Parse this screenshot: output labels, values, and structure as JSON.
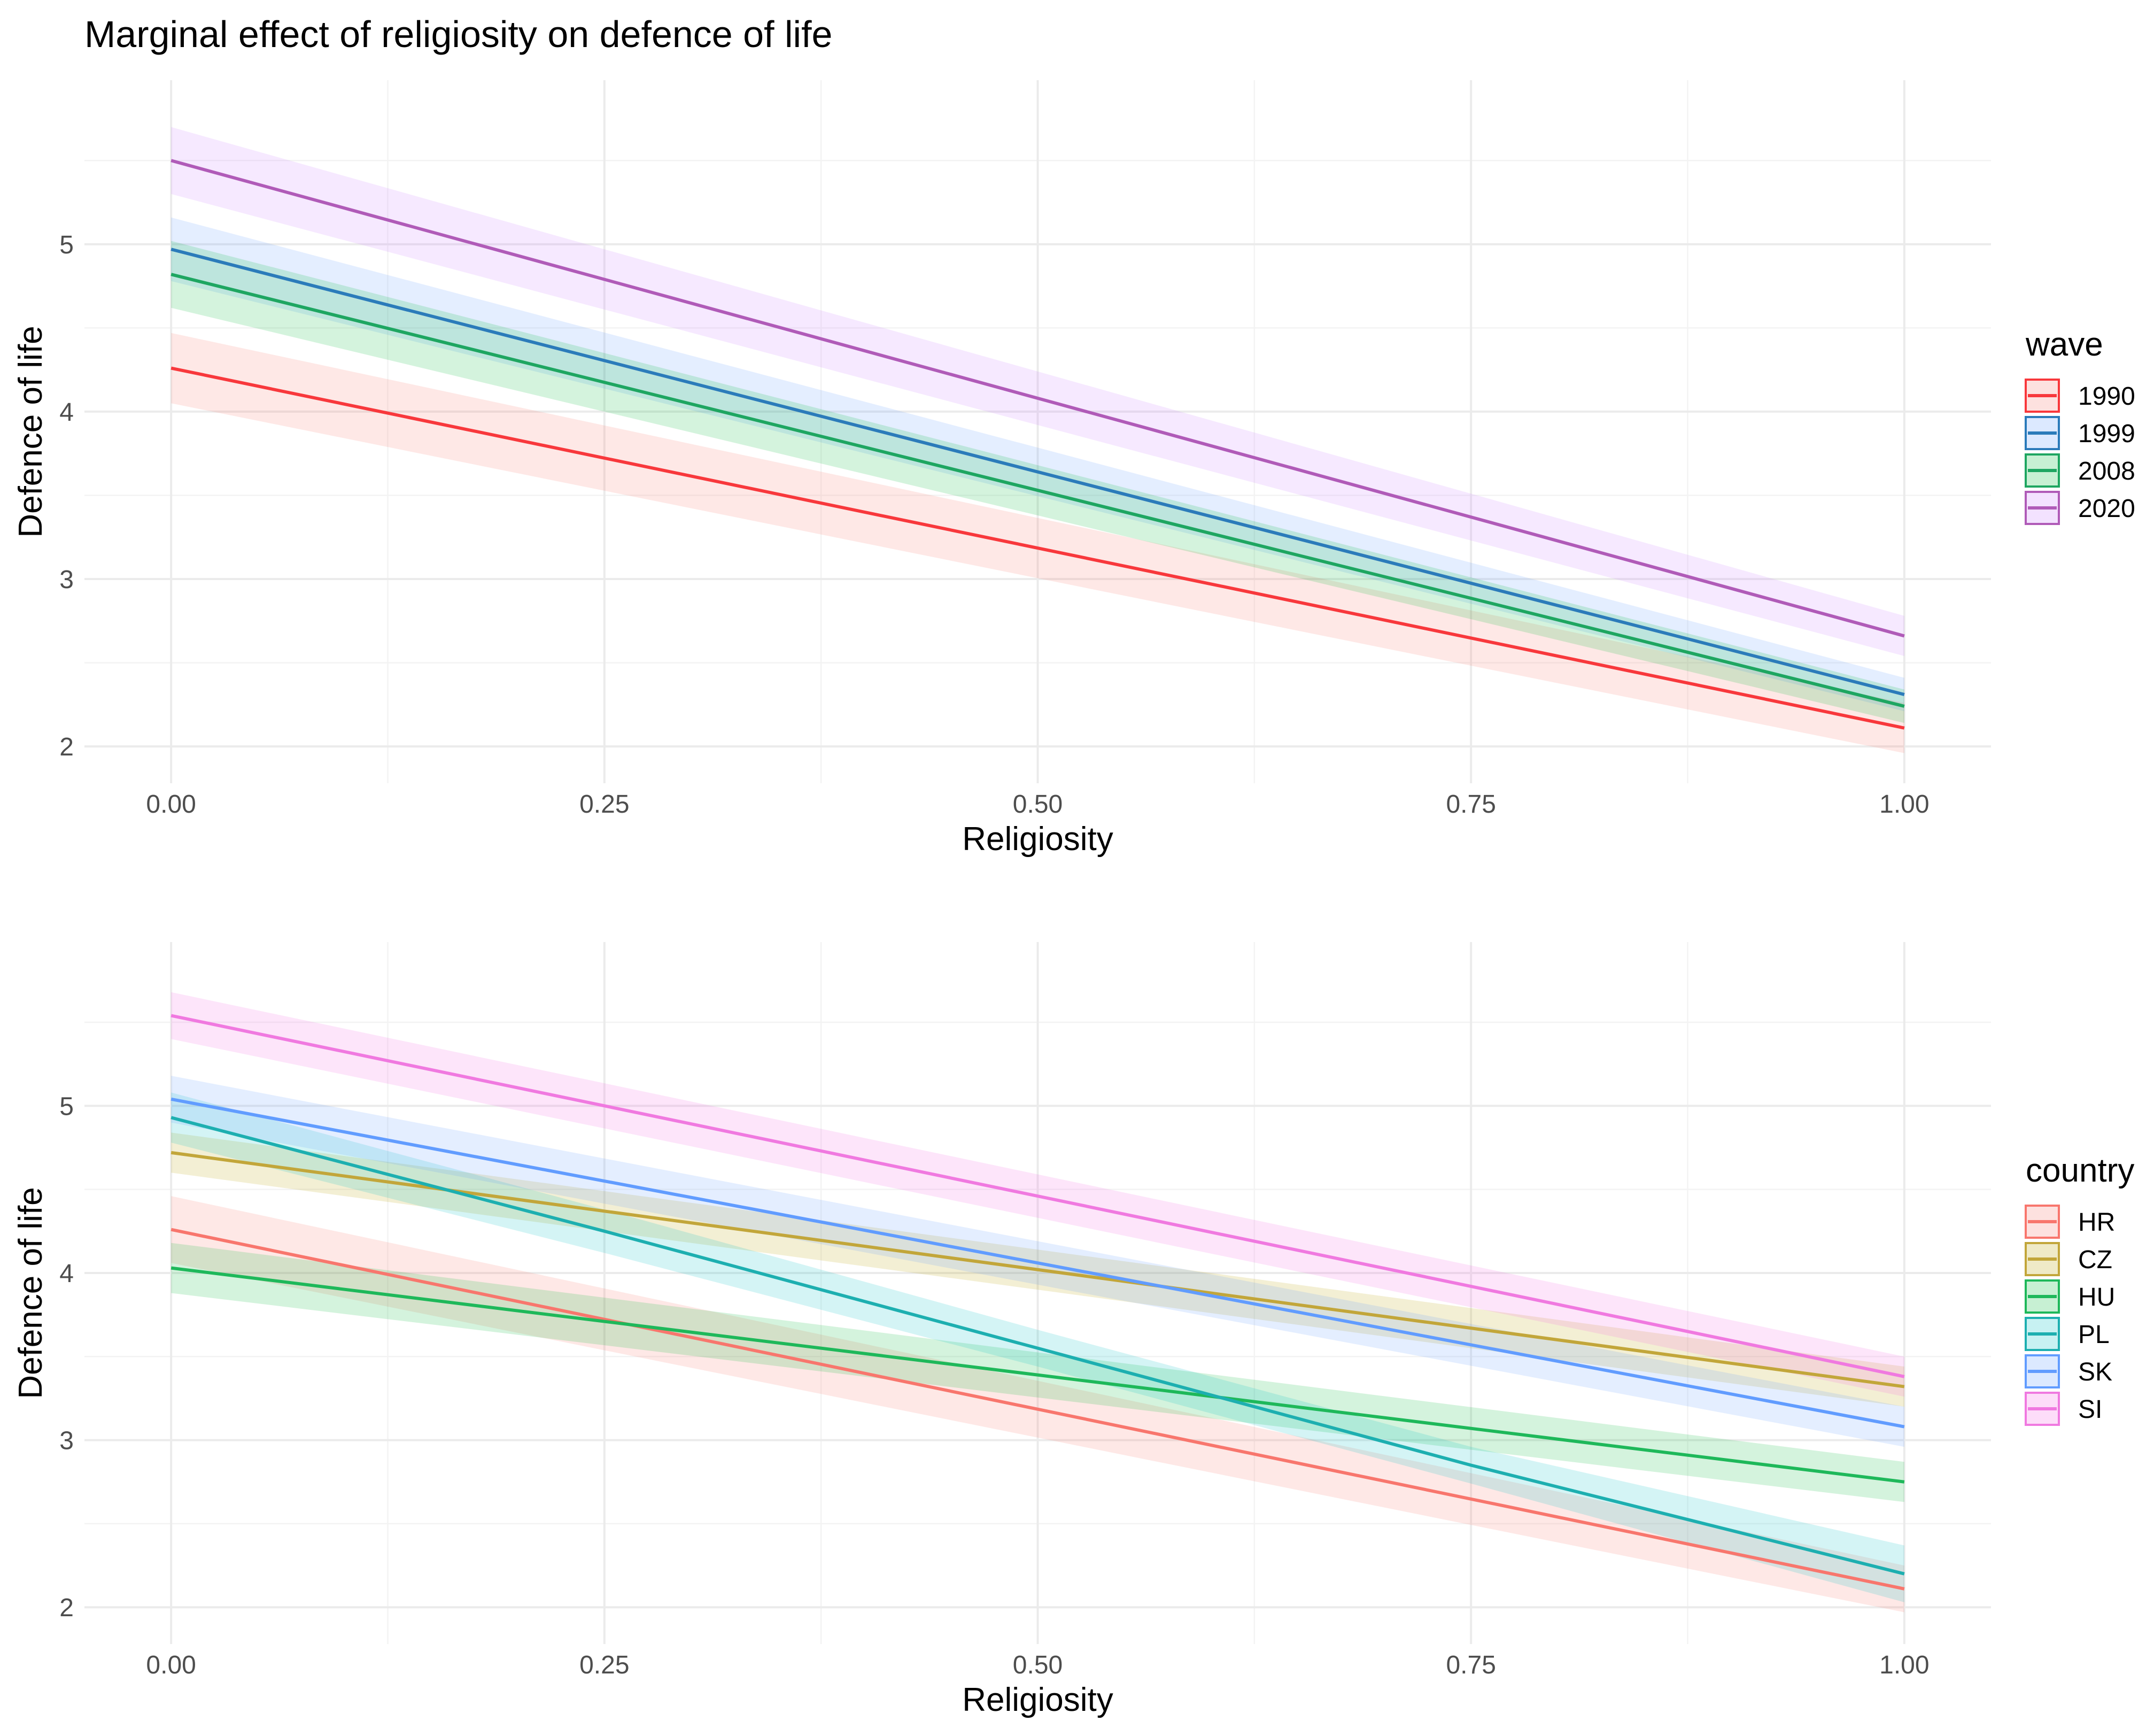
{
  "title": "Marginal effect of religiosity on defence of life",
  "chart_data": [
    {
      "type": "line",
      "xlabel": "Religiosity",
      "ylabel": "Defence of life",
      "xlim": [
        -0.05,
        1.05
      ],
      "ylim": [
        1.78,
        5.98
      ],
      "xticks": [
        0,
        0.25,
        0.5,
        0.75,
        1
      ],
      "xtick_labels": [
        "0.00",
        "0.25",
        "0.50",
        "0.75",
        "1.00"
      ],
      "yticks": [
        2,
        3,
        4,
        5
      ],
      "ytick_labels": [
        "2",
        "3",
        "4",
        "5"
      ],
      "grid": true,
      "legend_title": "wave",
      "legend_position": "right",
      "series": [
        {
          "name": "1990",
          "color": "#F8766D",
          "line_color": "#F8383C",
          "x": [
            0,
            1
          ],
          "y": [
            4.26,
            2.11
          ],
          "lower": [
            4.05,
            1.96
          ],
          "upper": [
            4.47,
            2.26
          ]
        },
        {
          "name": "1999",
          "color": "#619CFF",
          "line_color": "#2B7BBA",
          "x": [
            0,
            1
          ],
          "y": [
            4.97,
            2.31
          ],
          "lower": [
            4.78,
            2.21
          ],
          "upper": [
            5.16,
            2.41
          ]
        },
        {
          "name": "2008",
          "color": "#00BA38",
          "line_color": "#1EA661",
          "x": [
            0,
            1
          ],
          "y": [
            4.82,
            2.24
          ],
          "lower": [
            4.62,
            2.14
          ],
          "upper": [
            5.02,
            2.34
          ]
        },
        {
          "name": "2020",
          "color": "#C77CFF",
          "line_color": "#B05BB8",
          "x": [
            0,
            1
          ],
          "y": [
            5.5,
            2.66
          ],
          "lower": [
            5.3,
            2.54
          ],
          "upper": [
            5.7,
            2.78
          ]
        }
      ]
    },
    {
      "type": "line",
      "xlabel": "Religiosity",
      "ylabel": "Defence of life",
      "xlim": [
        -0.05,
        1.05
      ],
      "ylim": [
        1.78,
        5.98
      ],
      "xticks": [
        0,
        0.25,
        0.5,
        0.75,
        1
      ],
      "xtick_labels": [
        "0.00",
        "0.25",
        "0.50",
        "0.75",
        "1.00"
      ],
      "yticks": [
        2,
        3,
        4,
        5
      ],
      "ytick_labels": [
        "2",
        "3",
        "4",
        "5"
      ],
      "grid": true,
      "legend_title": "country",
      "legend_position": "right",
      "series": [
        {
          "name": "HR",
          "color": "#F8766D",
          "line_color": "#F8766D",
          "x": [
            0,
            1
          ],
          "y": [
            4.26,
            2.11
          ],
          "lower": [
            4.06,
            1.97
          ],
          "upper": [
            4.46,
            2.25
          ]
        },
        {
          "name": "CZ",
          "color": "#B79F00",
          "line_color": "#C2A63A",
          "x": [
            0,
            1
          ],
          "y": [
            4.72,
            3.32
          ],
          "lower": [
            4.6,
            3.2
          ],
          "upper": [
            4.84,
            3.44
          ]
        },
        {
          "name": "HU",
          "color": "#00BA38",
          "line_color": "#1EB85A",
          "x": [
            0,
            1
          ],
          "y": [
            4.03,
            2.75
          ],
          "lower": [
            3.88,
            2.63
          ],
          "upper": [
            4.18,
            2.87
          ]
        },
        {
          "name": "PL",
          "color": "#00BFC4",
          "line_color": "#1DAFB0",
          "x": [
            0,
            0.25,
            0.5,
            0.75,
            1
          ],
          "y": [
            4.93,
            4.25,
            3.55,
            2.85,
            2.2
          ],
          "lower": [
            4.78,
            4.12,
            3.44,
            2.74,
            2.03
          ],
          "upper": [
            5.08,
            4.38,
            3.66,
            2.96,
            2.37
          ]
        },
        {
          "name": "SK",
          "color": "#619CFF",
          "line_color": "#619CFF",
          "x": [
            0,
            1
          ],
          "y": [
            5.04,
            3.08
          ],
          "lower": [
            4.9,
            2.96
          ],
          "upper": [
            5.18,
            3.2
          ]
        },
        {
          "name": "SI",
          "color": "#F564E3",
          "line_color": "#F079E0",
          "x": [
            0,
            1
          ],
          "y": [
            5.54,
            3.38
          ],
          "lower": [
            5.4,
            3.26
          ],
          "upper": [
            5.68,
            3.5
          ]
        }
      ]
    }
  ]
}
